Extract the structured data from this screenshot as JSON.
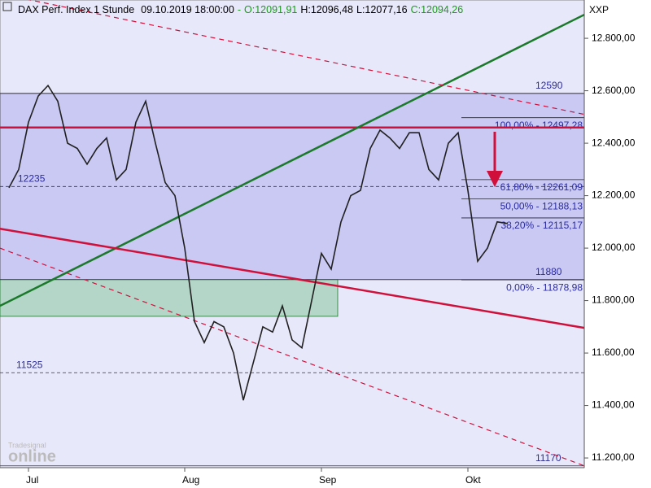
{
  "chart_data": {
    "type": "line",
    "title": "DAX Perf. Index 1 Stunde",
    "datetime": "09.10.2019 18:00:00",
    "ohlc_labels": [
      "O:12091,91",
      "H:12096,48",
      "L:12077,16",
      "C:12094,26"
    ],
    "symbol": "XXP",
    "watermark": [
      "Tradesignal",
      "online"
    ],
    "categories": [
      null,
      null,
      "Jul",
      null,
      null,
      null,
      null,
      null,
      null,
      null,
      null,
      null,
      null,
      null,
      null,
      null,
      null,
      null,
      "Aug",
      null,
      null,
      null,
      null,
      null,
      null,
      null,
      null,
      null,
      null,
      null,
      null,
      null,
      "Sep",
      null,
      null,
      null,
      null,
      null,
      null,
      null,
      null,
      null,
      null,
      null,
      null,
      null,
      null,
      "Okt",
      null,
      null,
      null,
      null
    ],
    "series": [
      {
        "name": "DAX",
        "color": "#202020",
        "values": [
          12230,
          12300,
          12480,
          12580,
          12620,
          12560,
          12400,
          12380,
          12320,
          12380,
          12420,
          12260,
          12300,
          12480,
          12560,
          12400,
          12250,
          12200,
          12000,
          11720,
          11640,
          11720,
          11700,
          11600,
          11420,
          11560,
          11700,
          11680,
          11780,
          11650,
          11620,
          11800,
          11980,
          11920,
          12100,
          12200,
          12220,
          12380,
          12450,
          12420,
          12380,
          12440,
          12440,
          12300,
          12260,
          12400,
          12440,
          12220,
          11950,
          12000,
          12100,
          12094.26
        ]
      }
    ],
    "ylim": [
      11163,
      12946
    ],
    "yticks": [
      {
        "value": 11200,
        "label": "11.200,00"
      },
      {
        "value": 11400,
        "label": "11.400,00"
      },
      {
        "value": 11600,
        "label": "11.600,00"
      },
      {
        "value": 11800,
        "label": "11.800,00"
      },
      {
        "value": 12000,
        "label": "12.000,00"
      },
      {
        "value": 12200,
        "label": "12.200,00"
      },
      {
        "value": 12400,
        "label": "12.400,00"
      },
      {
        "value": 12600,
        "label": "12.600,00"
      },
      {
        "value": 12800,
        "label": "12.800,00"
      }
    ],
    "levels": [
      12590,
      12235,
      11880,
      11525,
      11170
    ],
    "resistance": {
      "value": 12460,
      "color": "#d0103a"
    },
    "support_zone": {
      "low": 11740,
      "high": 11880,
      "color": "#b4d6c8"
    },
    "fib_levels": [
      {
        "value": 12497.28,
        "label": "100,00% - 12497,28"
      },
      {
        "value": 12261.09,
        "label": "61,80% - 12261,09"
      },
      {
        "value": 12188.13,
        "label": "50,00% - 12188,13"
      },
      {
        "value": 12115.17,
        "label": "38,20% - 12115,17"
      },
      {
        "value": 11878.98,
        "label": "0,00% - 11878,98"
      }
    ],
    "trend_lines": [
      {
        "color": "#1a7a2a",
        "values": [
          11780,
          12890
        ],
        "dashed": false
      },
      {
        "color": "#d0103a",
        "values": [
          12074,
          11696
        ],
        "dashed": false
      },
      {
        "color": "#d0103a",
        "values": [
          12970,
          12510
        ],
        "dashed": true
      },
      {
        "color": "#d0103a",
        "values": [
          12000,
          11170
        ],
        "dashed": true
      }
    ]
  }
}
